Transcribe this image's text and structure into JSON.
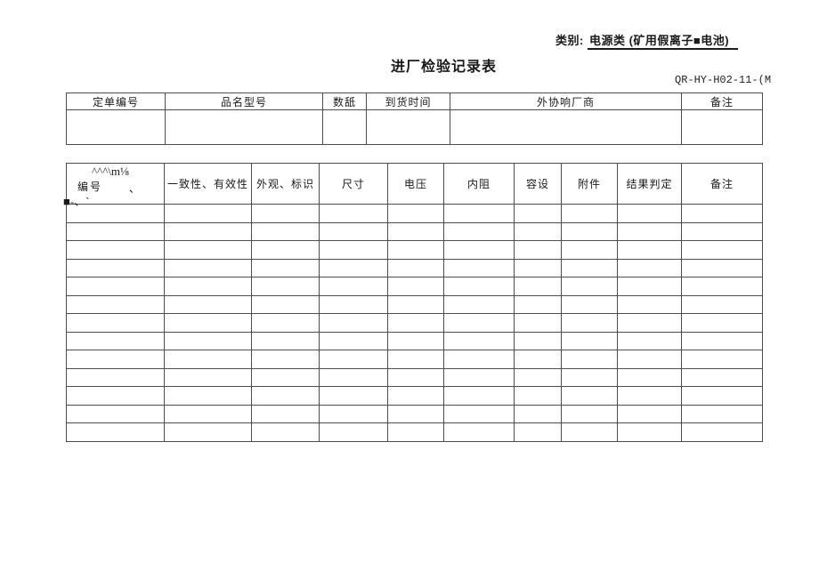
{
  "meta": {
    "category_label": "类别: ",
    "category_value": "电源类 (矿用假离子■电池)",
    "title": "进厂检验记录表",
    "doc_code": "QR-HY-H02-11-(M"
  },
  "summary_table": {
    "headers": [
      "定单编号",
      "品名型号",
      "数舐",
      "到货时间",
      "外协响厂商",
      "备注"
    ],
    "empty_rows": 1
  },
  "record_table": {
    "first_header": {
      "garble_top": "^^^\\m⅛",
      "label": "编号",
      "comma": "、",
      "garble_bottom": "■-、`"
    },
    "headers": [
      "一致性、有效性",
      "外观、标识",
      "尺寸",
      "电压",
      "内阻",
      "容设",
      "附件",
      "结果判定",
      "备注"
    ],
    "empty_rows": 13
  },
  "colors": {
    "border": "#4d4d4d",
    "text": "#1a1a1a"
  }
}
